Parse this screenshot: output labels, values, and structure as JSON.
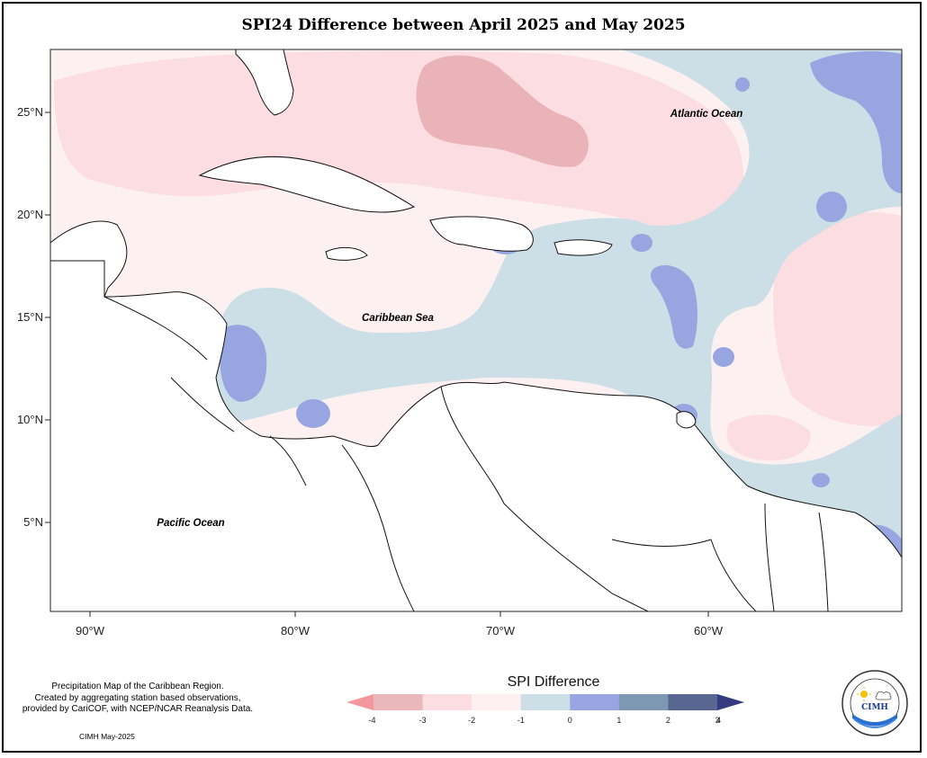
{
  "title": "SPI24 Difference between April 2025 and May 2025",
  "map": {
    "lat_ticks": [
      "25°N",
      "20°N",
      "15°N",
      "10°N",
      "5°N"
    ],
    "lon_ticks": [
      "90°W",
      "80°W",
      "70°W",
      "60°W"
    ],
    "labels": {
      "atlantic": "Atlantic Ocean",
      "caribbean": "Caribbean Sea",
      "pacific": "Pacific Ocean"
    }
  },
  "legend": {
    "title": "SPI Difference",
    "ticks": [
      "-4",
      "-3",
      "-2",
      "-1",
      "0",
      "1",
      "2",
      "3",
      "4"
    ],
    "colors": [
      "#f4979c",
      "#eab7ba",
      "#fbdde2",
      "#fdf0f1",
      "#cddfe6",
      "#97a5e0",
      "#7d98b2",
      "#5a6692",
      "#343b80"
    ]
  },
  "footer": {
    "line1": "Precipitation Map of the Caribbean Region.",
    "line2": "Created by aggregating station based observations,",
    "line3": "provided by CariCOF, with NCEP/NCAR Reanalysis Data.",
    "date": "CIMH May-2025"
  },
  "logo": {
    "text": "CIMH",
    "ring_text": "Caribbean Institute for Meteorology and Hydrology"
  }
}
